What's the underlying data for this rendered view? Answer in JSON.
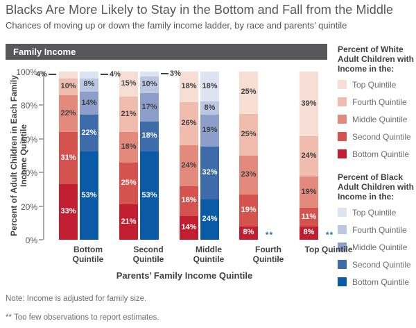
{
  "title": "Blacks Are More Likely to Stay in the Bottom and Fall from the Middle",
  "subtitle": "Chances of moving up or down the family income ladder, by race and parents’ quintile",
  "band_label": "Family Income",
  "axes": {
    "y_title_line1": "Percent of  Adult Children in Each Family",
    "y_title_line2": "Income  Quintile",
    "y_ticks": [
      100,
      80,
      60,
      40,
      20,
      0
    ],
    "x_title": "Parents’ Family Income Quintile"
  },
  "quintile_labels_top_down": [
    "Top Quintile",
    "Fourth Quintile",
    "Middle Quintile",
    "Second Quintile",
    "Bottom Quintile"
  ],
  "legends": [
    {
      "header": "Percent of White Adult Children with Income in the:",
      "series": 0
    },
    {
      "header": "Percent of Black Adult Children with Income in the:",
      "series": 1
    }
  ],
  "notes": {
    "line1": "Note: Income is adjusted for family size.",
    "line2": "** Too few observations to report estimates."
  },
  "chart_data": {
    "type": "bar",
    "subtype": "paired-stacked-100pct",
    "title": "Family Income",
    "xlabel": "Parents’ Family Income Quintile",
    "ylabel": "Percent of Adult Children in Each Family Income Quintile",
    "ylim": [
      0,
      100
    ],
    "grid": false,
    "categories": [
      "Bottom Quintile",
      "Second Quintile",
      "Middle Quintile",
      "Fourth Quintile",
      "Top Quintile"
    ],
    "stack_order_bottom_up": [
      "Bottom Quintile",
      "Second Quintile",
      "Middle Quintile",
      "Fourth Quintile",
      "Top Quintile"
    ],
    "series": [
      {
        "name": "White adult children",
        "colors_bottom_up": [
          "#c11f31",
          "#d5534e",
          "#e38a7c",
          "#f0bcad",
          "#f6ded4"
        ],
        "values_bottom_up": [
          [
            33,
            31,
            22,
            10,
            4
          ],
          [
            21,
            25,
            18,
            21,
            15
          ],
          [
            14,
            18,
            24,
            26,
            18
          ],
          [
            8,
            19,
            23,
            25,
            25
          ],
          [
            8,
            11,
            19,
            24,
            39
          ]
        ],
        "outside_top_label_side": [
          "left",
          null,
          null,
          null,
          null
        ]
      },
      {
        "name": "Black adult children",
        "colors_bottom_up": [
          "#0b5aa5",
          "#3e6ba9",
          "#8c9ec9",
          "#bbc6e1",
          "#dde3f0"
        ],
        "values_bottom_up": [
          [
            53,
            22,
            14,
            8,
            4
          ],
          [
            53,
            18,
            17,
            10,
            3
          ],
          [
            24,
            32,
            19,
            8,
            18
          ],
          null,
          null
        ],
        "outside_top_label_side": [
          "right",
          "right",
          null,
          null,
          null
        ],
        "suppressed_marker": "**"
      }
    ]
  }
}
